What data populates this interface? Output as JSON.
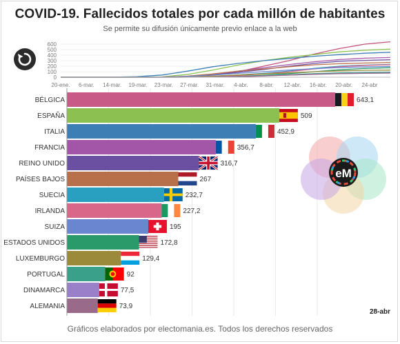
{
  "header": {
    "title": "COVID-19. Fallecidos totales por cada millón de habitantes",
    "subtitle": "Se permite su difusión únicamente previo enlace a la web"
  },
  "footer": {
    "credit": "Gráficos elaborados por electomania.es. Todos los derechos reservados",
    "date": "28-abr"
  },
  "logo": {
    "text": "eM"
  },
  "controls": {
    "replay_icon": "replay-icon"
  },
  "timeline": {
    "type": "line",
    "x_ticks": [
      "20-ene.",
      "6-mar.",
      "14-mar.",
      "19-mar.",
      "23-mar.",
      "27-mar.",
      "31-mar.",
      "4-abr.",
      "8-abr.",
      "12-abr.",
      "16-abr.",
      "20-abr.",
      "24-abr"
    ],
    "y_ticks": [
      0,
      100,
      200,
      300,
      400,
      500,
      600
    ],
    "ylim": [
      0,
      650
    ],
    "series": [
      {
        "color": "#c2507a",
        "values": [
          0,
          0,
          0,
          0,
          2,
          10,
          40,
          100,
          200,
          300,
          420,
          520,
          600,
          643
        ]
      },
      {
        "color": "#8cc152",
        "values": [
          0,
          0,
          0,
          1,
          8,
          50,
          130,
          220,
          300,
          360,
          410,
          460,
          490,
          509
        ]
      },
      {
        "color": "#3d7fb5",
        "values": [
          0,
          0,
          1,
          10,
          40,
          110,
          190,
          250,
          300,
          340,
          380,
          410,
          435,
          453
        ]
      },
      {
        "color": "#a356a8",
        "values": [
          0,
          0,
          0,
          1,
          4,
          15,
          50,
          110,
          170,
          230,
          280,
          320,
          345,
          357
        ]
      },
      {
        "color": "#6b4fa0",
        "values": [
          0,
          0,
          0,
          0,
          2,
          10,
          40,
          90,
          140,
          200,
          250,
          290,
          305,
          317
        ]
      },
      {
        "color": "#b8704a",
        "values": [
          0,
          0,
          0,
          1,
          5,
          20,
          60,
          110,
          150,
          190,
          225,
          245,
          258,
          267
        ]
      },
      {
        "color": "#2aa0c0",
        "values": [
          0,
          0,
          0,
          0,
          1,
          4,
          15,
          40,
          70,
          110,
          160,
          200,
          220,
          233
        ]
      },
      {
        "color": "#d9678a",
        "values": [
          0,
          0,
          0,
          0,
          1,
          3,
          12,
          30,
          60,
          100,
          150,
          190,
          215,
          227
        ]
      },
      {
        "color": "#6a86d0",
        "values": [
          0,
          0,
          0,
          1,
          4,
          15,
          40,
          70,
          100,
          130,
          155,
          175,
          188,
          195
        ]
      },
      {
        "color": "#2a9a6b",
        "values": [
          0,
          0,
          0,
          0,
          0,
          1,
          5,
          15,
          35,
          65,
          100,
          135,
          160,
          173
        ]
      },
      {
        "color": "#9a8a3a",
        "values": [
          0,
          0,
          0,
          0,
          1,
          5,
          20,
          40,
          60,
          80,
          100,
          115,
          125,
          129
        ]
      },
      {
        "color": "#3aa08a",
        "values": [
          0,
          0,
          0,
          0,
          0,
          1,
          4,
          10,
          25,
          45,
          65,
          80,
          88,
          92
        ]
      },
      {
        "color": "#9a80c8",
        "values": [
          0,
          0,
          0,
          0,
          0,
          1,
          4,
          12,
          25,
          40,
          55,
          68,
          74,
          78
        ]
      },
      {
        "color": "#9a6a8a",
        "values": [
          0,
          0,
          0,
          0,
          0,
          0,
          3,
          10,
          22,
          38,
          52,
          64,
          70,
          74
        ]
      }
    ]
  },
  "chart_data": {
    "type": "bar",
    "title": "COVID-19. Fallecidos totales por cada millón de habitantes",
    "categories": [
      "BÉLGICA",
      "ESPAÑA",
      "ITALIA",
      "FRANCIA",
      "REINO UNIDO",
      "PAÍSES BAJOS",
      "SUECIA",
      "IRLANDA",
      "SUIZA",
      "ESTADOS UNIDOS",
      "LUXEMBURGO",
      "PORTUGAL",
      "DINAMARCA",
      "ALEMANIA"
    ],
    "values": [
      643.1,
      509,
      452.9,
      356.7,
      316.7,
      267,
      232.7,
      227.2,
      195,
      172.8,
      129.4,
      92,
      77.5,
      73.9
    ],
    "labels": [
      "643,1",
      "509",
      "452,9",
      "356,7",
      "316,7",
      "267",
      "232,7",
      "227,2",
      "195",
      "172,8",
      "129,4",
      "92",
      "77,5",
      "73,9"
    ],
    "colors": [
      "#c75a86",
      "#8cc152",
      "#3d7fb5",
      "#a356a8",
      "#6b4fa0",
      "#b8704a",
      "#2aa0c0",
      "#d9678a",
      "#6a86d0",
      "#2a9a6b",
      "#9a8a3a",
      "#3aa08a",
      "#9a80c8",
      "#9a6a8a"
    ],
    "flags": [
      "belgium-flag",
      "spain-flag",
      "italy-flag",
      "france-flag",
      "uk-flag",
      "netherlands-flag",
      "sweden-flag",
      "ireland-flag",
      "switzerland-flag",
      "usa-flag",
      "luxembourg-flag",
      "portugal-flag",
      "denmark-flag",
      "germany-flag"
    ],
    "xlim": [
      0,
      650
    ],
    "grid": true,
    "date_label": "28-abr"
  }
}
